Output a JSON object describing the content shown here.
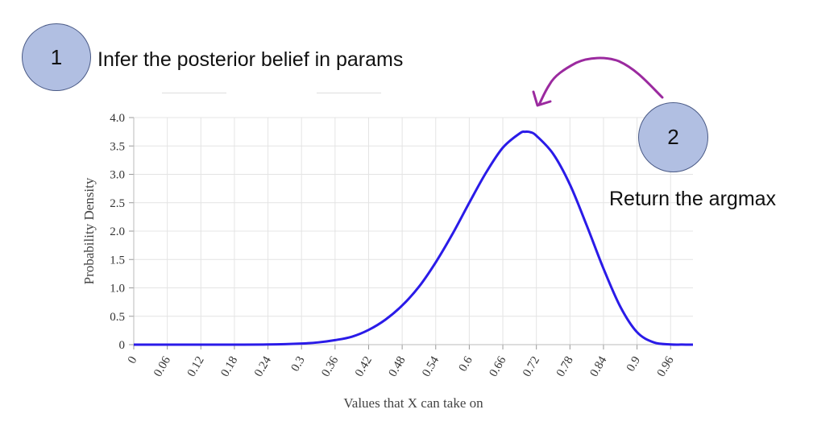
{
  "annotations": {
    "step1": {
      "number": "1",
      "text": "Infer the posterior belief in params"
    },
    "step2": {
      "number": "2",
      "text": "Return the argmax"
    },
    "arrow_color": "#9b2a9f"
  },
  "chart_data": {
    "type": "line",
    "xlabel": "Values that X can take on",
    "ylabel": "Probability Density",
    "xlim": [
      0,
      1
    ],
    "ylim": [
      0,
      4.0
    ],
    "x_ticks": [
      "0",
      "0.06",
      "0.12",
      "0.18",
      "0.24",
      "0.3",
      "0.36",
      "0.42",
      "0.48",
      "0.54",
      "0.6",
      "0.66",
      "0.72",
      "0.78",
      "0.84",
      "0.9",
      "0.96"
    ],
    "y_ticks": [
      "0",
      "0.5",
      "1.0",
      "1.5",
      "2.0",
      "2.5",
      "3.0",
      "3.5",
      "4.0"
    ],
    "grid": true,
    "line_color": "#2a1be8",
    "series": [
      {
        "x": [
          0,
          0.06,
          0.12,
          0.18,
          0.24,
          0.3,
          0.33,
          0.36,
          0.39,
          0.42,
          0.45,
          0.48,
          0.51,
          0.54,
          0.57,
          0.6,
          0.63,
          0.66,
          0.69,
          0.7,
          0.71,
          0.72,
          0.75,
          0.78,
          0.81,
          0.84,
          0.87,
          0.9,
          0.93,
          0.96,
          0.98,
          1.0
        ],
        "y": [
          0,
          0,
          0,
          0,
          0.003,
          0.02,
          0.04,
          0.08,
          0.14,
          0.26,
          0.44,
          0.69,
          1.02,
          1.45,
          1.95,
          2.5,
          3.03,
          3.47,
          3.72,
          3.75,
          3.74,
          3.68,
          3.36,
          2.82,
          2.1,
          1.34,
          0.67,
          0.22,
          0.04,
          0.004,
          0.001,
          0
        ]
      }
    ]
  }
}
